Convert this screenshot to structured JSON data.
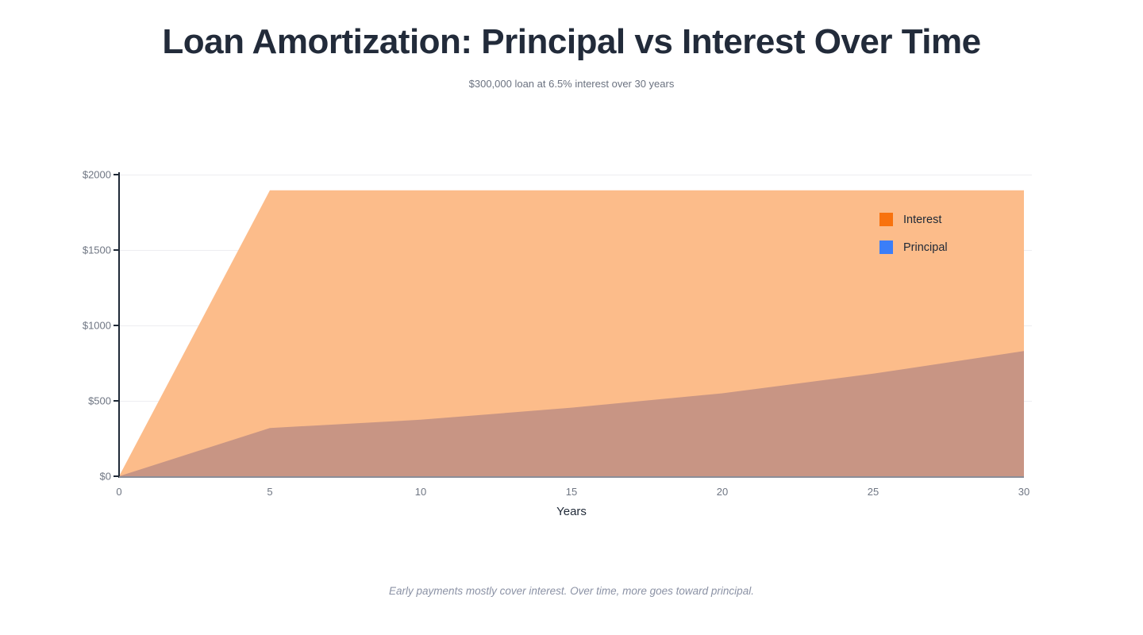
{
  "page": {
    "title": "Loan Amortization: Principal vs Interest Over Time",
    "subtitle": "$300,000 loan at 6.5% interest over 30 years",
    "footnote": "Early payments mostly cover interest. Over time, more goes toward principal."
  },
  "chart_data": {
    "type": "area",
    "stacked": true,
    "title": "Loan Amortization: Principal vs Interest Over Time",
    "subtitle": "$300,000 loan at 6.5% interest over 30 years",
    "x": [
      0,
      5,
      10,
      15,
      20,
      25,
      30
    ],
    "xlabel": "Years",
    "ylabel": "",
    "xlim": [
      0,
      30
    ],
    "ylim": [
      0,
      2000
    ],
    "xtick_labels": [
      "0",
      "5",
      "10",
      "15",
      "20",
      "25",
      "30"
    ],
    "ytick_labels": [
      "$0",
      "$500",
      "$1000",
      "$1500",
      "$2000"
    ],
    "ytick_values": [
      0,
      500,
      1000,
      1500,
      2000
    ],
    "grid": "horizontal",
    "legend_position": "top-right-inside",
    "series": [
      {
        "name": "Interest",
        "values": [
          0,
          1576,
          1521,
          1441,
          1346,
          1216,
          1066
        ],
        "legend_color": "#f8720e",
        "fill_color": "#fcbc8a"
      },
      {
        "name": "Principal",
        "values": [
          0,
          320,
          375,
          455,
          550,
          680,
          830
        ],
        "legend_color": "#3b7ef8",
        "fill_color": "#c89584"
      }
    ],
    "stacked_totals": [
      0,
      1896,
      1896,
      1896,
      1896,
      1896,
      1896
    ]
  },
  "colors": {
    "title": "#222b3a",
    "subtitle": "#6b7280",
    "tick": "#6f7683",
    "axis_y": "#1f2937",
    "axis_x": "#8a8e99",
    "grid": "#ededf1",
    "legend": "#1f2937",
    "foot": "#8b92a5",
    "bg": "#ffffff"
  }
}
